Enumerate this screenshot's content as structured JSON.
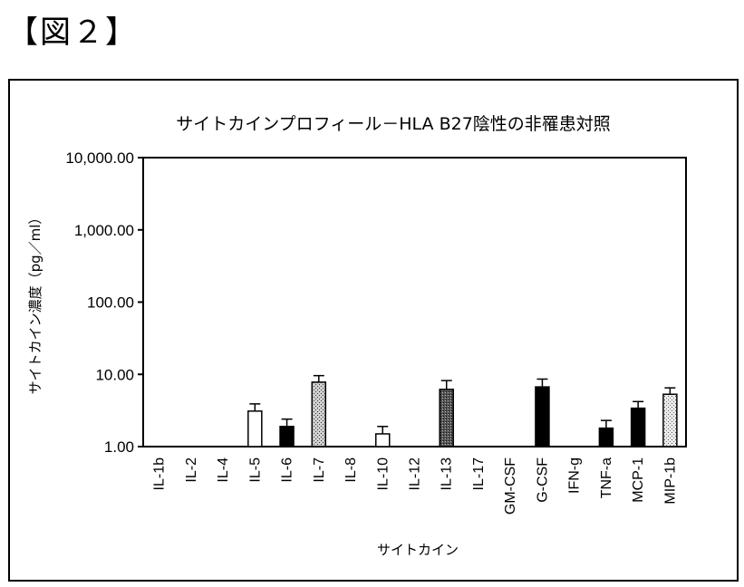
{
  "figure_label": "【図２】",
  "chart_data": {
    "type": "bar",
    "title": "サイトカインプロフィール－HLA B27陰性の非罹患対照",
    "xlabel": "サイトカイン",
    "ylabel": "サイトカイン濃度（pg／ml）",
    "yscale": "log",
    "ylim": [
      1,
      10000
    ],
    "yticks": [
      1,
      10,
      100,
      1000,
      10000
    ],
    "ytick_labels": [
      "1.00",
      "10.00",
      "100.00",
      "1,000.00",
      "10,000.00"
    ],
    "categories": [
      "IL-1b",
      "IL-2",
      "IL-4",
      "IL-5",
      "IL-6",
      "IL-7",
      "IL-8",
      "IL-10",
      "IL-12",
      "IL-13",
      "IL-17",
      "GM-CSF",
      "G-CSF",
      "IFN-g",
      "TNF-a",
      "MCP-1",
      "MIP-1b"
    ],
    "values": [
      1.0,
      1.0,
      1.0,
      3.1,
      1.9,
      7.8,
      1.0,
      1.5,
      1.0,
      6.2,
      1.0,
      1.0,
      6.7,
      1.0,
      1.8,
      3.4,
      5.3
    ],
    "error_upper": [
      1.0,
      1.0,
      1.0,
      3.9,
      2.4,
      9.6,
      1.0,
      1.9,
      1.0,
      8.2,
      1.0,
      1.0,
      8.6,
      1.0,
      2.3,
      4.2,
      6.5
    ],
    "bar_fills": [
      "none",
      "none",
      "none",
      "white",
      "black",
      "stipple",
      "none",
      "white",
      "none",
      "darkstipple",
      "none",
      "none",
      "black",
      "none",
      "black",
      "black",
      "lightstipple"
    ],
    "grid": false,
    "legend": "none"
  }
}
